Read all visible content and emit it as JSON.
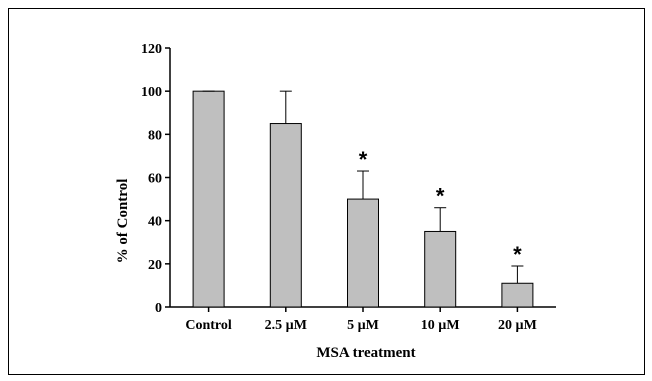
{
  "chart_data": {
    "type": "bar",
    "categories": [
      "Control",
      "2.5 µM",
      "5 µM",
      "10 µM",
      "20 µM"
    ],
    "values": [
      100,
      85,
      50,
      35,
      11
    ],
    "errors": [
      0,
      15,
      13,
      11,
      8
    ],
    "significance": [
      "",
      "",
      "*",
      "*",
      "*"
    ],
    "title": "",
    "xlabel": "MSA treatment",
    "ylabel": "% of Control",
    "ylim": [
      0,
      120
    ],
    "yticks": [
      0,
      20,
      40,
      60,
      80,
      100,
      120
    ],
    "bar_color": "#bfbfbf",
    "grid": false
  }
}
